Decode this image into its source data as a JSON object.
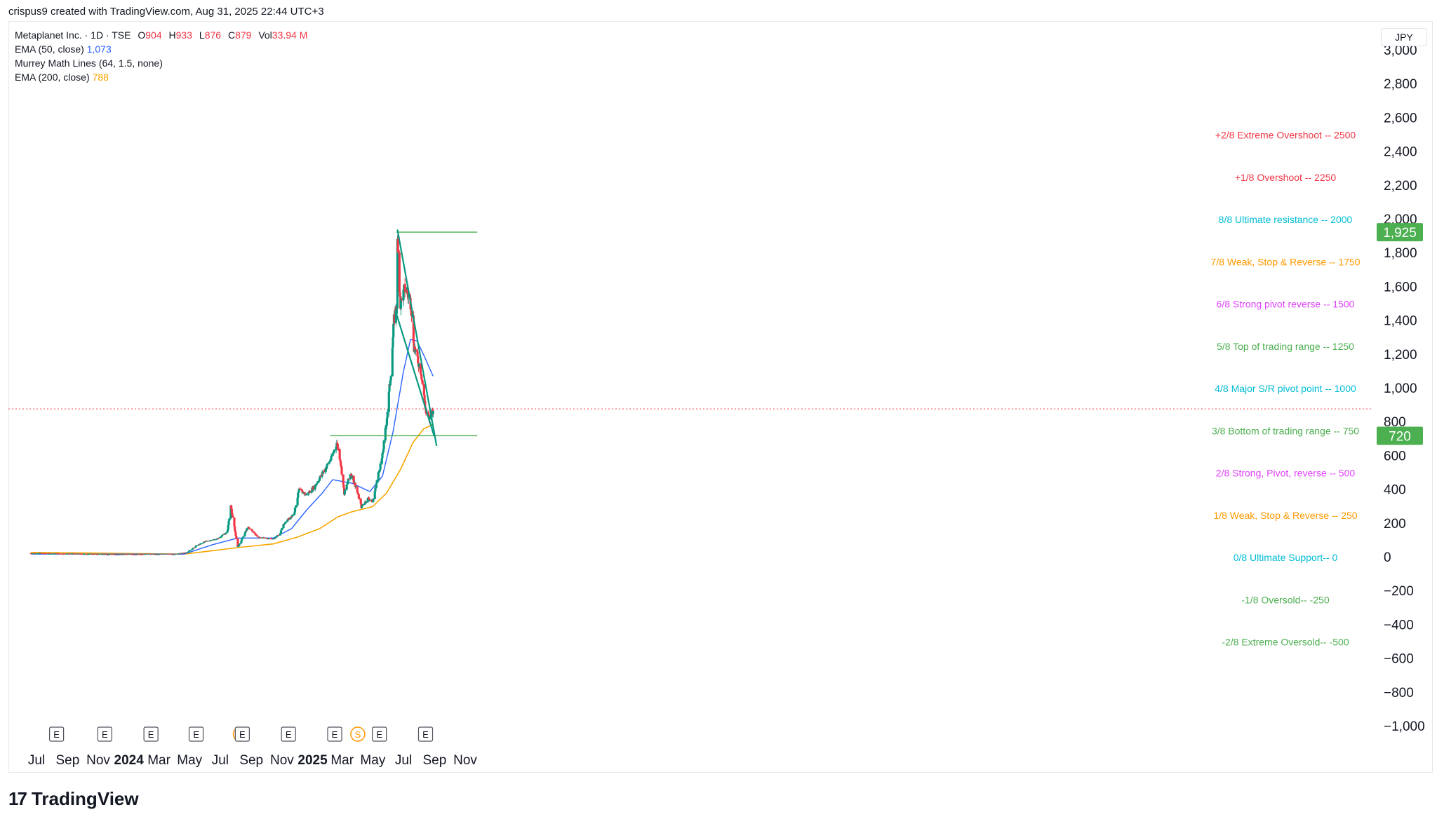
{
  "attribution": "crispus9 created with TradingView.com, Aug 31, 2025 22:44 UTC+3",
  "legend": {
    "symbol": "Metaplanet Inc. · 1D · TSE",
    "o_label": "O",
    "o": "904",
    "h_label": "H",
    "h": "933",
    "l_label": "L",
    "l": "876",
    "c_label": "C",
    "c": "879",
    "vol_label": "Vol",
    "vol": "33.94 M",
    "ema50_label": "EMA (50, close)",
    "ema50_value": "1,073",
    "murrey_label": "Murrey Math Lines (64, 1.5, none)",
    "ema200_label": "EMA (200, close)",
    "ema200_value": "788"
  },
  "currency": "JPY",
  "logo_text": "TradingView",
  "colors": {
    "up": "#089981",
    "down": "#f23645",
    "ema50": "#2962ff",
    "ema200": "#f7a600",
    "trend_lines": "#089981",
    "level_lines": "#4caf50",
    "price_line": "#f23645"
  },
  "chart_data": {
    "type": "candlestick",
    "ylim": [
      -1000,
      3000
    ],
    "y_ticks": [
      "3,000",
      "2,800",
      "2,600",
      "2,400",
      "2,200",
      "2,000",
      "1,800",
      "1,600",
      "1,400",
      "1,200",
      "1,000",
      "800",
      "600",
      "400",
      "200",
      "0",
      "−200",
      "−400",
      "−600",
      "−800",
      "−1,000"
    ],
    "x_ticks": [
      {
        "label": "Jul",
        "date": "2023-07-01"
      },
      {
        "label": "Sep",
        "date": "2023-09-01"
      },
      {
        "label": "Nov",
        "date": "2023-11-01"
      },
      {
        "label": "2024",
        "date": "2024-01-01",
        "bold": true
      },
      {
        "label": "Mar",
        "date": "2024-03-01"
      },
      {
        "label": "May",
        "date": "2024-05-01"
      },
      {
        "label": "Jul",
        "date": "2024-07-01"
      },
      {
        "label": "Sep",
        "date": "2024-09-01"
      },
      {
        "label": "Nov",
        "date": "2024-11-01"
      },
      {
        "label": "2025",
        "date": "2025-01-01",
        "bold": true
      },
      {
        "label": "Mar",
        "date": "2025-03-01"
      },
      {
        "label": "May",
        "date": "2025-05-01"
      },
      {
        "label": "Jul",
        "date": "2025-07-01"
      },
      {
        "label": "Sep",
        "date": "2025-09-01"
      },
      {
        "label": "Nov",
        "date": "2025-11-01"
      }
    ],
    "price_path": [
      [
        "2023-06-20",
        25
      ],
      [
        "2023-12-01",
        18
      ],
      [
        "2024-04-01",
        20
      ],
      [
        "2024-04-25",
        28
      ],
      [
        "2024-05-15",
        70
      ],
      [
        "2024-06-01",
        95
      ],
      [
        "2024-06-25",
        110
      ],
      [
        "2024-07-15",
        150
      ],
      [
        "2024-07-22",
        300
      ],
      [
        "2024-08-05",
        60
      ],
      [
        "2024-08-15",
        120
      ],
      [
        "2024-08-25",
        180
      ],
      [
        "2024-09-15",
        120
      ],
      [
        "2024-10-15",
        110
      ],
      [
        "2024-10-28",
        140
      ],
      [
        "2024-11-05",
        200
      ],
      [
        "2024-11-25",
        260
      ],
      [
        "2024-12-05",
        400
      ],
      [
        "2024-12-20",
        370
      ],
      [
        "2025-01-05",
        420
      ],
      [
        "2025-01-25",
        520
      ],
      [
        "2025-02-08",
        590
      ],
      [
        "2025-02-18",
        680
      ],
      [
        "2025-02-25",
        580
      ],
      [
        "2025-03-05",
        380
      ],
      [
        "2025-03-18",
        500
      ],
      [
        "2025-03-28",
        420
      ],
      [
        "2025-04-08",
        300
      ],
      [
        "2025-04-22",
        350
      ],
      [
        "2025-05-01",
        330
      ],
      [
        "2025-05-10",
        470
      ],
      [
        "2025-05-20",
        600
      ],
      [
        "2025-05-28",
        800
      ],
      [
        "2025-06-06",
        1100
      ],
      [
        "2025-06-12",
        1400
      ],
      [
        "2025-06-18",
        1500
      ],
      [
        "2025-06-19",
        1850
      ],
      [
        "2025-06-25",
        1500
      ],
      [
        "2025-07-05",
        1600
      ],
      [
        "2025-07-16",
        1500
      ],
      [
        "2025-07-22",
        1250
      ],
      [
        "2025-08-05",
        1100
      ],
      [
        "2025-08-15",
        850
      ],
      [
        "2025-08-22",
        820
      ],
      [
        "2025-08-29",
        879
      ]
    ],
    "ema50": [
      [
        "2023-06-20",
        20
      ],
      [
        "2024-04-20",
        20
      ],
      [
        "2024-06-15",
        75
      ],
      [
        "2024-08-05",
        115
      ],
      [
        "2024-10-15",
        115
      ],
      [
        "2024-11-20",
        170
      ],
      [
        "2024-12-20",
        280
      ],
      [
        "2025-01-20",
        380
      ],
      [
        "2025-02-10",
        460
      ],
      [
        "2025-03-20",
        440
      ],
      [
        "2025-04-25",
        390
      ],
      [
        "2025-05-20",
        480
      ],
      [
        "2025-06-10",
        740
      ],
      [
        "2025-07-01",
        1100
      ],
      [
        "2025-07-15",
        1290
      ],
      [
        "2025-07-28",
        1280
      ],
      [
        "2025-08-10",
        1200
      ],
      [
        "2025-08-29",
        1073
      ]
    ],
    "ema200": [
      [
        "2023-06-20",
        30
      ],
      [
        "2024-04-20",
        20
      ],
      [
        "2024-06-15",
        40
      ],
      [
        "2024-08-10",
        60
      ],
      [
        "2024-10-15",
        80
      ],
      [
        "2024-12-01",
        120
      ],
      [
        "2025-01-15",
        170
      ],
      [
        "2025-02-20",
        240
      ],
      [
        "2025-03-20",
        270
      ],
      [
        "2025-04-30",
        300
      ],
      [
        "2025-05-28",
        380
      ],
      [
        "2025-06-25",
        520
      ],
      [
        "2025-07-20",
        680
      ],
      [
        "2025-08-10",
        760
      ],
      [
        "2025-08-29",
        788
      ]
    ],
    "last_price": 879,
    "axis_badges": [
      {
        "label": "1,925",
        "value": 1925
      },
      {
        "label": "720",
        "value": 720
      }
    ],
    "horizontal_levels": [
      {
        "value": 1925,
        "from": "2025-06-17",
        "to": "2025-11-25"
      },
      {
        "value": 720,
        "from": "2025-02-05",
        "to": "2025-11-25"
      }
    ],
    "wedge_lines": [
      {
        "from": [
          "2025-06-19",
          1940
        ],
        "to": [
          "2025-09-05",
          660
        ]
      },
      {
        "from": [
          "2025-06-15",
          1460
        ],
        "to": [
          "2025-08-31",
          720
        ]
      }
    ],
    "murrey_levels": [
      {
        "text": "+2/8 Extreme Overshoot --  2500",
        "value": 2500,
        "color": "#f23645"
      },
      {
        "text": "+1/8 Overshoot --  2250",
        "value": 2250,
        "color": "#f23645"
      },
      {
        "text": "8/8 Ultimate resistance --  2000",
        "value": 2000,
        "color": "#00bcd4"
      },
      {
        "text": "7/8 Weak, Stop & Reverse --  1750",
        "value": 1750,
        "color": "#ff9800"
      },
      {
        "text": "6/8 Strong pivot reverse --  1500",
        "value": 1500,
        "color": "#e040fb"
      },
      {
        "text": "5/8 Top of trading range --  1250",
        "value": 1250,
        "color": "#4caf50"
      },
      {
        "text": "4/8 Major S/R pivot point --  1000",
        "value": 1000,
        "color": "#00bcd4"
      },
      {
        "text": "3/8 Bottom of trading range --  750",
        "value": 750,
        "color": "#4caf50"
      },
      {
        "text": "2/8 Strong, Pivot, reverse --  500",
        "value": 500,
        "color": "#e040fb"
      },
      {
        "text": "1/8 Weak, Stop & Reverse --  250",
        "value": 250,
        "color": "#ff9800"
      },
      {
        "text": "0/8 Ultimate Support--  0",
        "value": 0,
        "color": "#00bcd4"
      },
      {
        "text": "-1/8 Oversold--  -250",
        "value": -250,
        "color": "#4caf50"
      },
      {
        "text": "-2/8 Extreme Oversold--  -500",
        "value": -500,
        "color": "#4caf50"
      }
    ],
    "events": [
      {
        "label": "E",
        "date": "2023-08-10"
      },
      {
        "label": "E",
        "date": "2023-11-14"
      },
      {
        "label": "E",
        "date": "2024-02-14"
      },
      {
        "label": "E",
        "date": "2024-05-14"
      },
      {
        "label": "S",
        "date": "2024-08-10"
      },
      {
        "label": "E",
        "date": "2024-08-14"
      },
      {
        "label": "E",
        "date": "2024-11-14"
      },
      {
        "label": "E",
        "date": "2025-02-14"
      },
      {
        "label": "S",
        "date": "2025-04-01"
      },
      {
        "label": "E",
        "date": "2025-05-14"
      },
      {
        "label": "E",
        "date": "2025-08-14"
      }
    ]
  }
}
